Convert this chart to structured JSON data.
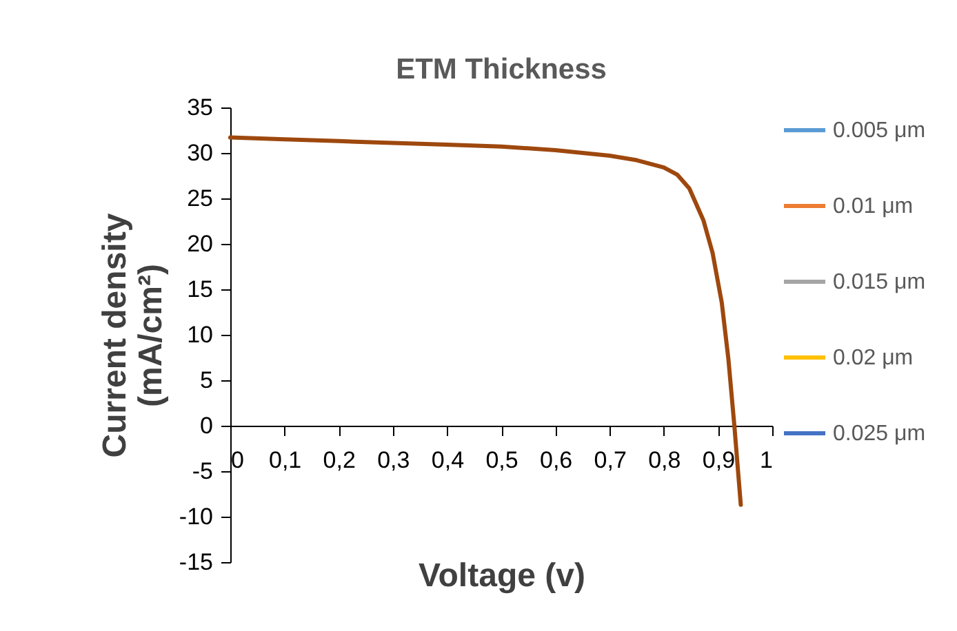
{
  "chart_data": {
    "type": "line",
    "title": "ETM Thickness",
    "xlabel": "Voltage (v)",
    "ylabel": "Current density (mA/cm²)",
    "x": [
      0,
      0.1,
      0.2,
      0.3,
      0.4,
      0.5,
      0.6,
      0.7,
      0.75,
      0.8,
      0.825,
      0.847,
      0.873,
      0.89,
      0.907,
      0.919,
      0.93,
      0.942
    ],
    "series": [
      {
        "name": "0.005 μm",
        "color": "#5b9bd5",
        "values": [
          null,
          null,
          null,
          null,
          null,
          null,
          null,
          null,
          null,
          null,
          null,
          null,
          null,
          null,
          null,
          null,
          null,
          null
        ]
      },
      {
        "name": "0.01 μm",
        "color": "#ed7d31",
        "values": [
          null,
          null,
          null,
          null,
          null,
          null,
          null,
          null,
          null,
          null,
          null,
          null,
          null,
          null,
          null,
          null,
          null,
          null
        ]
      },
      {
        "name": "0.015 μm",
        "color": "#a5a5a5",
        "values": [
          null,
          null,
          null,
          null,
          null,
          null,
          null,
          null,
          null,
          null,
          null,
          null,
          null,
          null,
          null,
          null,
          null,
          null
        ]
      },
      {
        "name": "0.02 μm",
        "color": "#ffc000",
        "values": [
          null,
          null,
          null,
          null,
          null,
          null,
          null,
          null,
          null,
          null,
          null,
          null,
          null,
          null,
          null,
          null,
          null,
          null
        ]
      },
      {
        "name": "0.025 μm",
        "color": "#4472c4",
        "values": [
          null,
          null,
          null,
          null,
          null,
          null,
          null,
          null,
          null,
          null,
          null,
          null,
          null,
          null,
          null,
          null,
          null,
          null
        ]
      },
      {
        "color": "#9e480e",
        "values": [
          31.7,
          31.5,
          31.3,
          31.1,
          30.9,
          30.7,
          30.3,
          29.7,
          29.2,
          28.4,
          27.6,
          26.1,
          22.6,
          19.0,
          13.5,
          7.4,
          0.1,
          -8.7
        ]
      }
    ],
    "xlim": [
      0,
      1
    ],
    "xticks": [
      0,
      {
        "value": 0.1,
        "label": "0,1"
      },
      {
        "value": 0.2,
        "label": "0,2"
      },
      {
        "value": 0.3,
        "label": "0,3"
      },
      {
        "value": 0.4,
        "label": "0,4"
      },
      {
        "value": 0.5,
        "label": "0,5"
      },
      {
        "value": 0.6,
        "label": "0,6"
      },
      {
        "value": 0.7,
        "label": "0,7"
      },
      {
        "value": 0.8,
        "label": "0,8"
      },
      {
        "value": 0.9,
        "label": "0,9"
      },
      1
    ],
    "ylim": [
      -15,
      35
    ],
    "yticks": [
      -15,
      -10,
      -5,
      0,
      5,
      10,
      15,
      20,
      25,
      30,
      35
    ],
    "grid": false,
    "legend": "right",
    "marker": "none",
    "line_style": "solid"
  }
}
